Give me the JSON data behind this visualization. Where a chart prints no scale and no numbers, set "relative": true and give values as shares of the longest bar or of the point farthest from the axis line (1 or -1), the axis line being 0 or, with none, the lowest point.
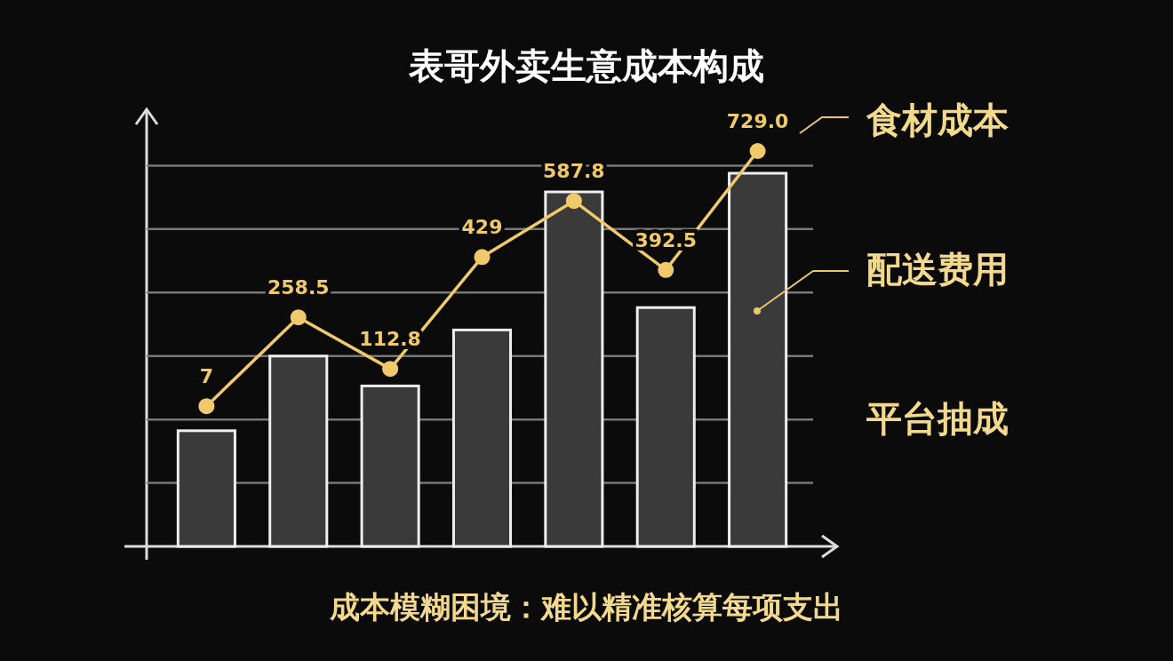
{
  "chart_data": [
    {
      "type": "bar",
      "title": "表哥外卖生意成本构成",
      "relative": true,
      "grid": true,
      "color": "#3a3a3a",
      "categories": [
        null,
        null,
        null,
        null,
        null,
        null,
        null
      ],
      "values": [
        0.31,
        0.51,
        0.43,
        0.58,
        0.95,
        0.64,
        1
      ],
      "annotations": [
        "食材成本",
        "配送费用",
        "平台抽成",
        "成本模糊困境：难以精准核算每项支出"
      ]
    },
    {
      "type": "line",
      "color": "#f0c96a",
      "marker": "circle",
      "categories": [
        null,
        null,
        null,
        null,
        null,
        null,
        null
      ],
      "values": [
        7,
        258.5,
        112.8,
        429,
        587.8,
        392.5,
        729.0
      ],
      "value_labels": [
        "7",
        "258.5",
        "112.8",
        "429",
        "587.8",
        "392.5",
        "729.0"
      ]
    }
  ]
}
